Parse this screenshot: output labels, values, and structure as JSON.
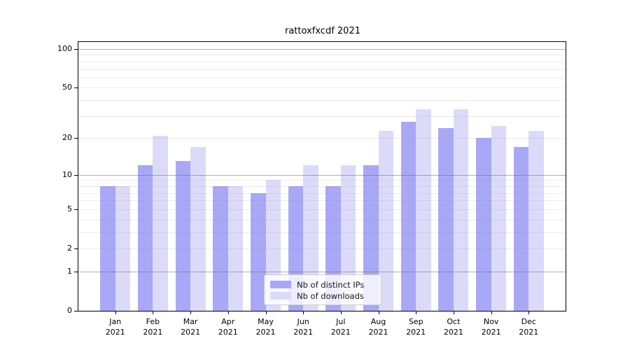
{
  "chart_data": {
    "type": "bar",
    "title": "rattoxfxcdf 2021",
    "categories": [
      "Jan 2021",
      "Feb 2021",
      "Mar 2021",
      "Apr 2021",
      "May 2021",
      "Jun 2021",
      "Jul 2021",
      "Aug 2021",
      "Sep 2021",
      "Oct 2021",
      "Nov 2021",
      "Dec 2021"
    ],
    "x_tick_months": [
      "Jan",
      "Feb",
      "Mar",
      "Apr",
      "May",
      "Jun",
      "Jul",
      "Aug",
      "Sep",
      "Oct",
      "Nov",
      "Dec"
    ],
    "x_tick_year": "2021",
    "series": [
      {
        "name": "Nb of distinct IPs",
        "color": "#a8a8f6",
        "values": [
          8,
          12,
          13,
          8,
          7,
          8,
          8,
          12,
          27,
          24,
          20,
          17
        ]
      },
      {
        "name": "Nb of downloads",
        "color": "#dbdbf9",
        "values": [
          8,
          21,
          17,
          8,
          9,
          12,
          12,
          23,
          34,
          34,
          25,
          23
        ]
      }
    ],
    "yscale": "log10(value+1)",
    "ylim": [
      0,
      115
    ],
    "y_ticks": [
      100,
      50,
      20,
      10,
      5,
      2,
      1,
      0
    ],
    "y_gridlines_major": [
      1,
      10,
      100
    ],
    "y_gridlines_minor": [
      2,
      3,
      4,
      5,
      6,
      7,
      8,
      9,
      20,
      30,
      40,
      50,
      60,
      70,
      80,
      90
    ],
    "grid": true,
    "legend_position": "lower center",
    "background_color": "#ffffff",
    "axis_color": "#000000"
  }
}
